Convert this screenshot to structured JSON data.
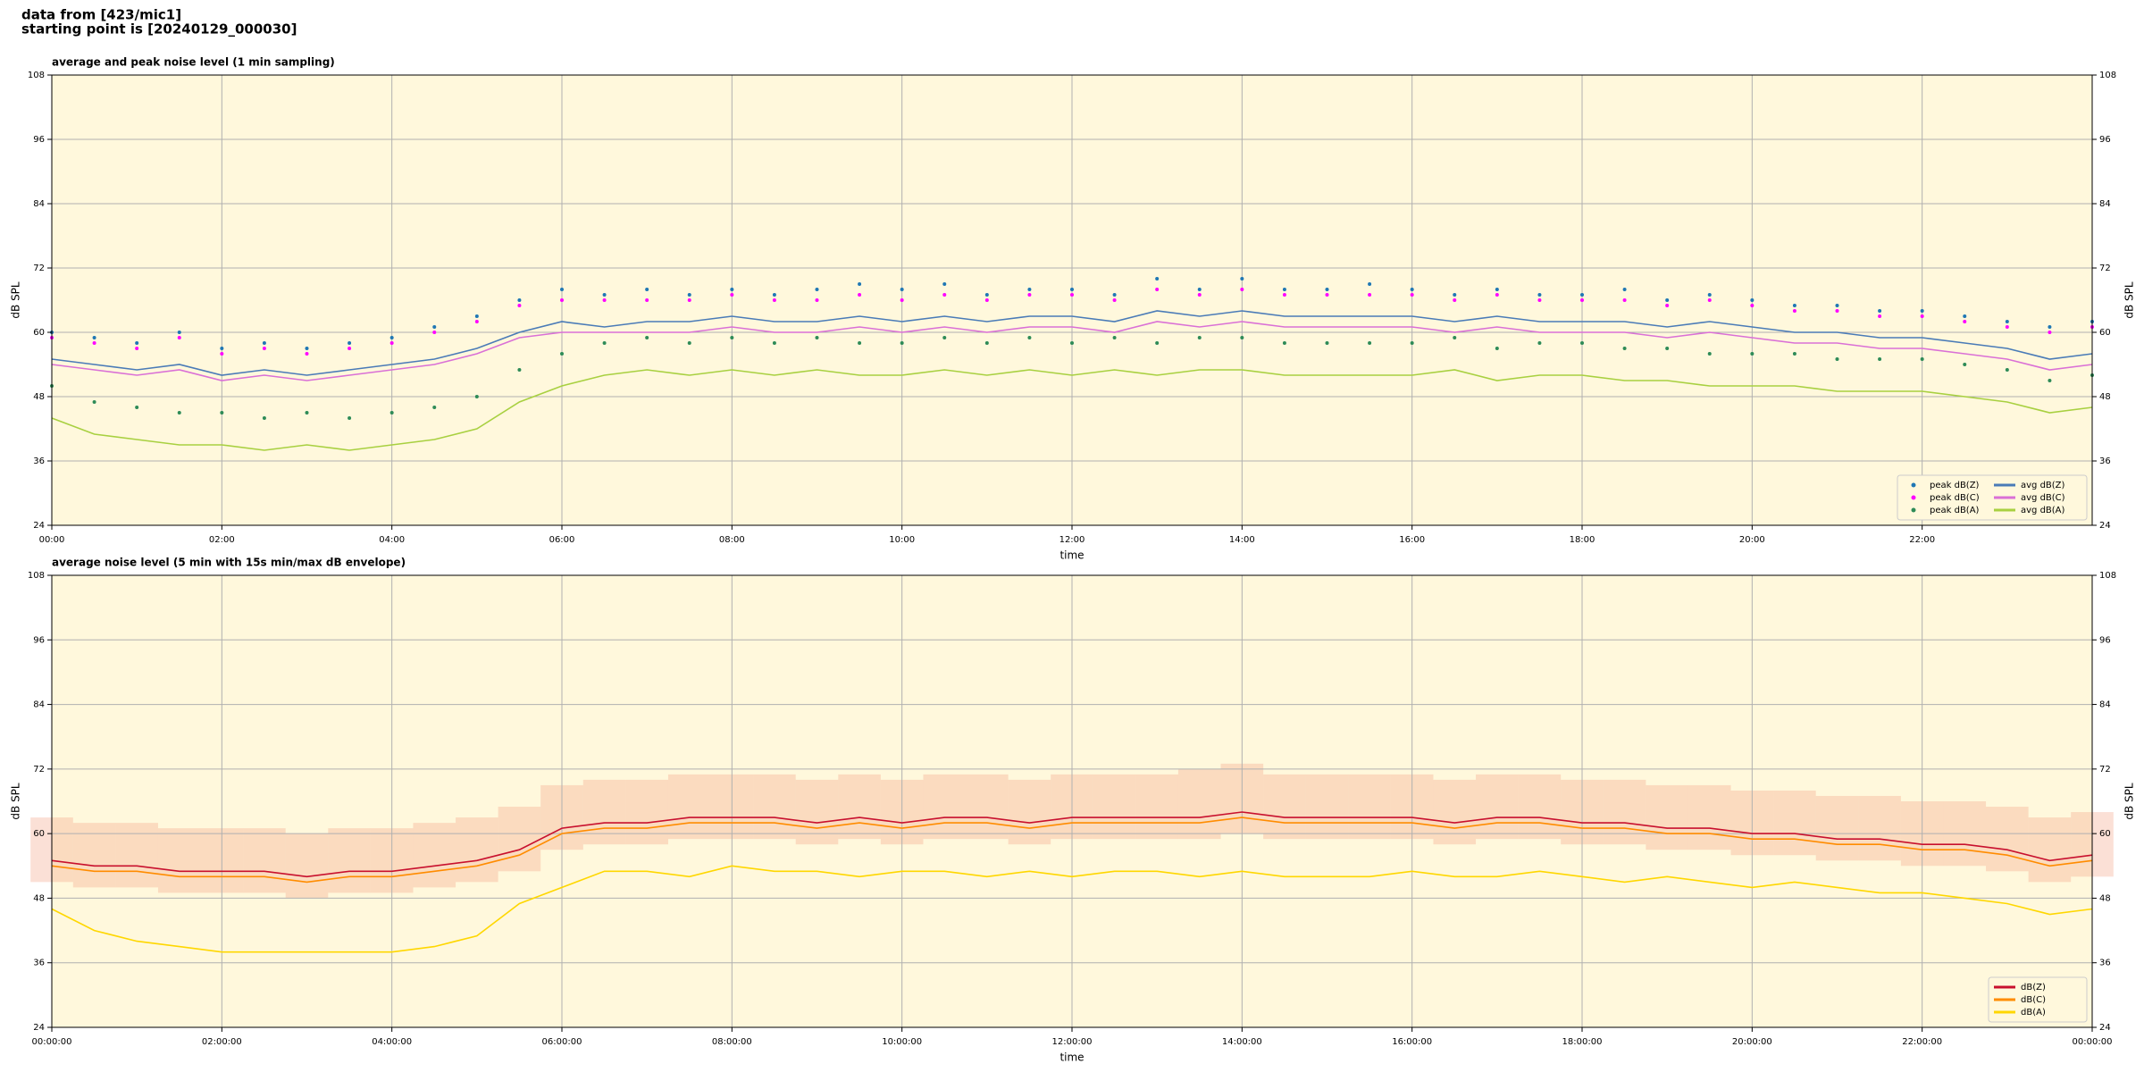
{
  "header": {
    "line1": "data from [423/mic1]",
    "line2": "starting point is [20240129_000030]"
  },
  "chart_data": [
    {
      "type": "line",
      "title": "average and peak noise level (1 min sampling)",
      "xlabel": "time",
      "ylabel": "dB SPL",
      "x": [
        0,
        30,
        60,
        90,
        120,
        150,
        180,
        210,
        240,
        270,
        300,
        330,
        360,
        390,
        420,
        450,
        480,
        510,
        540,
        570,
        600,
        630,
        660,
        690,
        720,
        750,
        780,
        810,
        840,
        870,
        900,
        930,
        960,
        990,
        1020,
        1050,
        1080,
        1110,
        1140,
        1170,
        1200,
        1230,
        1260,
        1290,
        1320,
        1350,
        1380,
        1410,
        1440
      ],
      "xlim": [
        0,
        1440
      ],
      "xticks": [
        {
          "value": 0,
          "label": "00:00"
        },
        {
          "value": 120,
          "label": "02:00"
        },
        {
          "value": 240,
          "label": "04:00"
        },
        {
          "value": 360,
          "label": "06:00"
        },
        {
          "value": 480,
          "label": "08:00"
        },
        {
          "value": 600,
          "label": "10:00"
        },
        {
          "value": 720,
          "label": "12:00"
        },
        {
          "value": 840,
          "label": "14:00"
        },
        {
          "value": 960,
          "label": "16:00"
        },
        {
          "value": 1080,
          "label": "18:00"
        },
        {
          "value": 1200,
          "label": "20:00"
        },
        {
          "value": 1320,
          "label": "22:00"
        }
      ],
      "ylim": [
        24,
        108
      ],
      "yticks": [
        24,
        36,
        48,
        60,
        72,
        84,
        96,
        108
      ],
      "grid": true,
      "legend": "lower right",
      "legend_ncol": 2,
      "series": [
        {
          "name": "peak dB(Z)",
          "color": "#1f77b4",
          "mode": "markers",
          "values": [
            60,
            59,
            58,
            60,
            57,
            58,
            57,
            58,
            59,
            61,
            63,
            66,
            68,
            67,
            68,
            67,
            68,
            67,
            68,
            69,
            68,
            69,
            67,
            68,
            68,
            67,
            70,
            68,
            70,
            68,
            68,
            69,
            68,
            67,
            68,
            67,
            67,
            68,
            66,
            67,
            66,
            65,
            65,
            64,
            64,
            63,
            62,
            61,
            62
          ]
        },
        {
          "name": "peak dB(C)",
          "color": "#ff00ff",
          "mode": "markers",
          "values": [
            59,
            58,
            57,
            59,
            56,
            57,
            56,
            57,
            58,
            60,
            62,
            65,
            66,
            66,
            66,
            66,
            67,
            66,
            66,
            67,
            66,
            67,
            66,
            67,
            67,
            66,
            68,
            67,
            68,
            67,
            67,
            67,
            67,
            66,
            67,
            66,
            66,
            66,
            65,
            66,
            65,
            64,
            64,
            63,
            63,
            62,
            61,
            60,
            61
          ]
        },
        {
          "name": "peak dB(A)",
          "color": "#2e8b57",
          "mode": "markers",
          "values": [
            50,
            47,
            46,
            45,
            45,
            44,
            45,
            44,
            45,
            46,
            48,
            53,
            56,
            58,
            59,
            58,
            59,
            58,
            59,
            58,
            58,
            59,
            58,
            59,
            58,
            59,
            58,
            59,
            59,
            58,
            58,
            58,
            58,
            59,
            57,
            58,
            58,
            57,
            57,
            56,
            56,
            56,
            55,
            55,
            55,
            54,
            53,
            51,
            52
          ]
        },
        {
          "name": "avg dB(Z)",
          "color": "#4a7bb7",
          "mode": "lines",
          "values": [
            55,
            54,
            53,
            54,
            52,
            53,
            52,
            53,
            54,
            55,
            57,
            60,
            62,
            61,
            62,
            62,
            63,
            62,
            62,
            63,
            62,
            63,
            62,
            63,
            63,
            62,
            64,
            63,
            64,
            63,
            63,
            63,
            63,
            62,
            63,
            62,
            62,
            62,
            61,
            62,
            61,
            60,
            60,
            59,
            59,
            58,
            57,
            55,
            56
          ]
        },
        {
          "name": "avg dB(C)",
          "color": "#da70d6",
          "mode": "lines",
          "values": [
            54,
            53,
            52,
            53,
            51,
            52,
            51,
            52,
            53,
            54,
            56,
            59,
            60,
            60,
            60,
            60,
            61,
            60,
            60,
            61,
            60,
            61,
            60,
            61,
            61,
            60,
            62,
            61,
            62,
            61,
            61,
            61,
            61,
            60,
            61,
            60,
            60,
            60,
            59,
            60,
            59,
            58,
            58,
            57,
            57,
            56,
            55,
            53,
            54
          ]
        },
        {
          "name": "avg dB(A)",
          "color": "#a8d040",
          "mode": "lines",
          "values": [
            44,
            41,
            40,
            39,
            39,
            38,
            39,
            38,
            39,
            40,
            42,
            47,
            50,
            52,
            53,
            52,
            53,
            52,
            53,
            52,
            52,
            53,
            52,
            53,
            52,
            53,
            52,
            53,
            53,
            52,
            52,
            52,
            52,
            53,
            51,
            52,
            52,
            51,
            51,
            50,
            50,
            50,
            49,
            49,
            49,
            48,
            47,
            45,
            46
          ]
        }
      ]
    },
    {
      "type": "line",
      "title": "average noise level (5 min with 15s min/max dB envelope)",
      "xlabel": "time",
      "ylabel": "dB SPL",
      "x": [
        0,
        30,
        60,
        90,
        120,
        150,
        180,
        210,
        240,
        270,
        300,
        330,
        360,
        390,
        420,
        450,
        480,
        510,
        540,
        570,
        600,
        630,
        660,
        690,
        720,
        750,
        780,
        810,
        840,
        870,
        900,
        930,
        960,
        990,
        1020,
        1050,
        1080,
        1110,
        1140,
        1170,
        1200,
        1230,
        1260,
        1290,
        1320,
        1350,
        1380,
        1410,
        1440
      ],
      "xlim": [
        0,
        1440
      ],
      "xticks": [
        {
          "value": 0,
          "label": "00:00:00"
        },
        {
          "value": 120,
          "label": "02:00:00"
        },
        {
          "value": 240,
          "label": "04:00:00"
        },
        {
          "value": 360,
          "label": "06:00:00"
        },
        {
          "value": 480,
          "label": "08:00:00"
        },
        {
          "value": 600,
          "label": "10:00:00"
        },
        {
          "value": 720,
          "label": "12:00:00"
        },
        {
          "value": 840,
          "label": "14:00:00"
        },
        {
          "value": 960,
          "label": "16:00:00"
        },
        {
          "value": 1080,
          "label": "18:00:00"
        },
        {
          "value": 1200,
          "label": "20:00:00"
        },
        {
          "value": 1320,
          "label": "22:00:00"
        },
        {
          "value": 1440,
          "label": "00:00:00"
        }
      ],
      "ylim": [
        24,
        108
      ],
      "yticks": [
        24,
        36,
        48,
        60,
        72,
        84,
        96,
        108
      ],
      "grid": true,
      "legend": "lower right",
      "legend_ncol": 1,
      "envelope": {
        "color": "#f4a58a",
        "low": [
          51,
          50,
          50,
          49,
          49,
          49,
          48,
          49,
          49,
          50,
          51,
          53,
          57,
          58,
          58,
          59,
          59,
          59,
          58,
          59,
          58,
          59,
          59,
          58,
          59,
          59,
          59,
          59,
          60,
          59,
          59,
          59,
          59,
          58,
          59,
          59,
          58,
          58,
          57,
          57,
          56,
          56,
          55,
          55,
          54,
          54,
          53,
          51,
          52
        ],
        "high": [
          63,
          62,
          62,
          61,
          61,
          61,
          60,
          61,
          61,
          62,
          63,
          65,
          69,
          70,
          70,
          71,
          71,
          71,
          70,
          71,
          70,
          71,
          71,
          70,
          71,
          71,
          71,
          72,
          73,
          71,
          71,
          71,
          71,
          70,
          71,
          71,
          70,
          70,
          69,
          69,
          68,
          68,
          67,
          67,
          66,
          66,
          65,
          63,
          64
        ]
      },
      "series": [
        {
          "name": "dB(Z)",
          "color": "#c8102e",
          "mode": "lines",
          "values": [
            55,
            54,
            54,
            53,
            53,
            53,
            52,
            53,
            53,
            54,
            55,
            57,
            61,
            62,
            62,
            63,
            63,
            63,
            62,
            63,
            62,
            63,
            63,
            62,
            63,
            63,
            63,
            63,
            64,
            63,
            63,
            63,
            63,
            62,
            63,
            63,
            62,
            62,
            61,
            61,
            60,
            60,
            59,
            59,
            58,
            58,
            57,
            55,
            56
          ]
        },
        {
          "name": "dB(C)",
          "color": "#ff8c00",
          "mode": "lines",
          "values": [
            54,
            53,
            53,
            52,
            52,
            52,
            51,
            52,
            52,
            53,
            54,
            56,
            60,
            61,
            61,
            62,
            62,
            62,
            61,
            62,
            61,
            62,
            62,
            61,
            62,
            62,
            62,
            62,
            63,
            62,
            62,
            62,
            62,
            61,
            62,
            62,
            61,
            61,
            60,
            60,
            59,
            59,
            58,
            58,
            57,
            57,
            56,
            54,
            55
          ]
        },
        {
          "name": "dB(A)",
          "color": "#ffd700",
          "mode": "lines",
          "values": [
            46,
            42,
            40,
            39,
            38,
            38,
            38,
            38,
            38,
            39,
            41,
            47,
            50,
            53,
            53,
            52,
            54,
            53,
            53,
            52,
            53,
            53,
            52,
            53,
            52,
            53,
            53,
            52,
            53,
            52,
            52,
            52,
            53,
            52,
            52,
            53,
            52,
            51,
            52,
            51,
            50,
            51,
            50,
            49,
            49,
            48,
            47,
            45,
            46
          ]
        }
      ]
    }
  ]
}
